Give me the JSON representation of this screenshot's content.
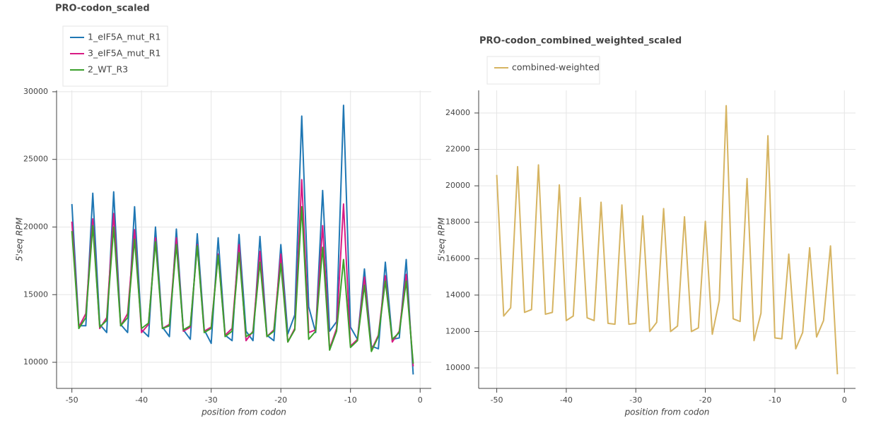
{
  "chart_data": [
    {
      "type": "line",
      "title": "PRO-codon_scaled",
      "x_label": "position from codon",
      "y_label": "5'seq RPM",
      "x": [
        -50,
        -49,
        -48,
        -47,
        -46,
        -45,
        -44,
        -43,
        -42,
        -41,
        -40,
        -39,
        -38,
        -37,
        -36,
        -35,
        -34,
        -33,
        -32,
        -31,
        -30,
        -29,
        -28,
        -27,
        -26,
        -25,
        -24,
        -23,
        -22,
        -21,
        -20,
        -19,
        -18,
        -17,
        -16,
        -15,
        -14,
        -13,
        -12,
        -11,
        -10,
        -9,
        -8,
        -7,
        -6,
        -5,
        -4,
        -3,
        -2,
        -1
      ],
      "series": [
        {
          "name": "1_eIF5A_mut_R1",
          "color": "#1f77b4",
          "values": [
            21700,
            12700,
            12700,
            22500,
            12800,
            12200,
            22600,
            12800,
            12200,
            21500,
            12400,
            11900,
            20000,
            12600,
            11900,
            19850,
            12400,
            11700,
            19500,
            12400,
            11400,
            19200,
            12000,
            11600,
            19450,
            12300,
            11600,
            19300,
            12000,
            11600,
            18700,
            12100,
            13500,
            28200,
            14100,
            12200,
            22700,
            12300,
            13000,
            29000,
            12600,
            11700,
            16900,
            11200,
            11000,
            17400,
            11700,
            11800,
            17600,
            9100
          ]
        },
        {
          "name": "3_eIF5A_mut_R1",
          "color": "#d81b84",
          "values": [
            20400,
            12600,
            13600,
            20600,
            12500,
            13300,
            21000,
            12700,
            13600,
            19800,
            12200,
            12800,
            19200,
            12500,
            12800,
            19200,
            12300,
            12600,
            18700,
            12300,
            12600,
            18000,
            12000,
            12500,
            18700,
            11600,
            12300,
            18200,
            11900,
            12400,
            18000,
            11500,
            12500,
            23500,
            12200,
            12400,
            20100,
            11000,
            12500,
            21700,
            11200,
            11700,
            16300,
            10900,
            12000,
            16400,
            11500,
            12300,
            16500,
            9700
          ]
        },
        {
          "name": "2_WT_R3",
          "color": "#3ca02c",
          "values": [
            19700,
            12500,
            13300,
            20100,
            12600,
            13100,
            20000,
            12700,
            13300,
            19100,
            12500,
            12900,
            18900,
            12500,
            12700,
            18700,
            12400,
            12700,
            18600,
            12200,
            12500,
            17900,
            11900,
            12300,
            18100,
            11900,
            12200,
            17400,
            11900,
            12300,
            17300,
            11500,
            12400,
            21500,
            11700,
            12300,
            18500,
            10900,
            12300,
            17600,
            11100,
            11600,
            15700,
            10800,
            11900,
            16000,
            11700,
            12200,
            16000,
            9900
          ]
        }
      ],
      "xlim": [
        -52.2,
        1.6
      ],
      "ylim": [
        8070,
        30100
      ],
      "xticks": [
        -50,
        -40,
        -30,
        -20,
        -10,
        0
      ],
      "yticks": [
        10000,
        15000,
        20000,
        25000,
        30000
      ],
      "grid": true
    },
    {
      "type": "line",
      "title": "PRO-codon_combined_weighted_scaled",
      "x_label": "position from codon",
      "y_label": "5'seq RPM",
      "x": [
        -50,
        -49,
        -48,
        -47,
        -46,
        -45,
        -44,
        -43,
        -42,
        -41,
        -40,
        -39,
        -38,
        -37,
        -36,
        -35,
        -34,
        -33,
        -32,
        -31,
        -30,
        -29,
        -28,
        -27,
        -26,
        -25,
        -24,
        -23,
        -22,
        -21,
        -20,
        -19,
        -18,
        -17,
        -16,
        -15,
        -14,
        -13,
        -12,
        -11,
        -10,
        -9,
        -8,
        -7,
        -6,
        -5,
        -4,
        -3,
        -2,
        -1
      ],
      "series": [
        {
          "name": "combined-weighted",
          "color": "#d6b462",
          "values": [
            20600,
            12850,
            13300,
            21050,
            13050,
            13200,
            21150,
            12950,
            13050,
            20050,
            12600,
            12850,
            19350,
            12750,
            12600,
            19100,
            12450,
            12400,
            18950,
            12400,
            12450,
            18350,
            12000,
            12500,
            18750,
            12000,
            12300,
            18300,
            12000,
            12200,
            18050,
            11850,
            13700,
            24400,
            12700,
            12550,
            20400,
            11500,
            13000,
            22750,
            11650,
            11600,
            16250,
            11050,
            11950,
            16600,
            11700,
            12600,
            16700,
            9650
          ]
        }
      ],
      "xlim": [
        -52.6,
        1.6
      ],
      "ylim": [
        8876,
        25240
      ],
      "xticks": [
        -50,
        -40,
        -30,
        -20,
        -10,
        0
      ],
      "yticks": [
        10000,
        12000,
        14000,
        16000,
        18000,
        20000,
        22000,
        24000
      ],
      "grid": true
    }
  ]
}
